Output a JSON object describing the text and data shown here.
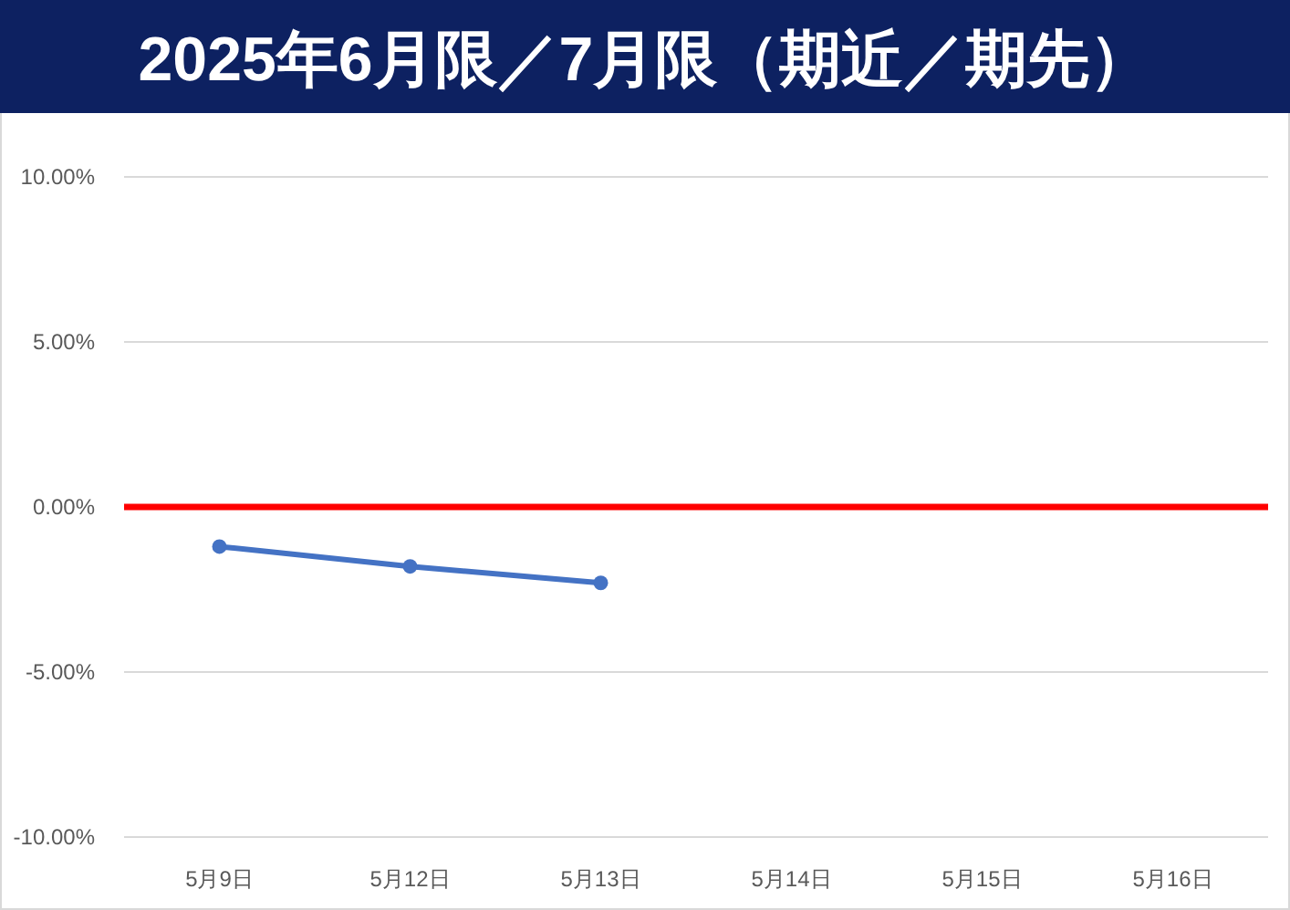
{
  "chart_data": {
    "type": "line",
    "title": "2025年6月限／7月限（期近／期先）",
    "categories": [
      "5月9日",
      "5月12日",
      "5月13日",
      "5月14日",
      "5月15日",
      "5月16日"
    ],
    "series": [
      {
        "color": "#4472c4",
        "values": [
          -1.2,
          -1.8,
          -2.3,
          null,
          null,
          null
        ]
      }
    ],
    "ylim": [
      -10,
      10
    ],
    "yticks": [
      {
        "value": -10,
        "label": "-10.00%"
      },
      {
        "value": -5,
        "label": "-5.00%"
      },
      {
        "value": 0,
        "label": "0.00%"
      },
      {
        "value": 5,
        "label": "5.00%"
      },
      {
        "value": 10,
        "label": "10.00%"
      }
    ],
    "ref_lines": [
      {
        "axis": "y",
        "value": 0,
        "color": "#ff0000"
      }
    ],
    "grid": "y",
    "marker": "circle",
    "line_style": "solid"
  }
}
